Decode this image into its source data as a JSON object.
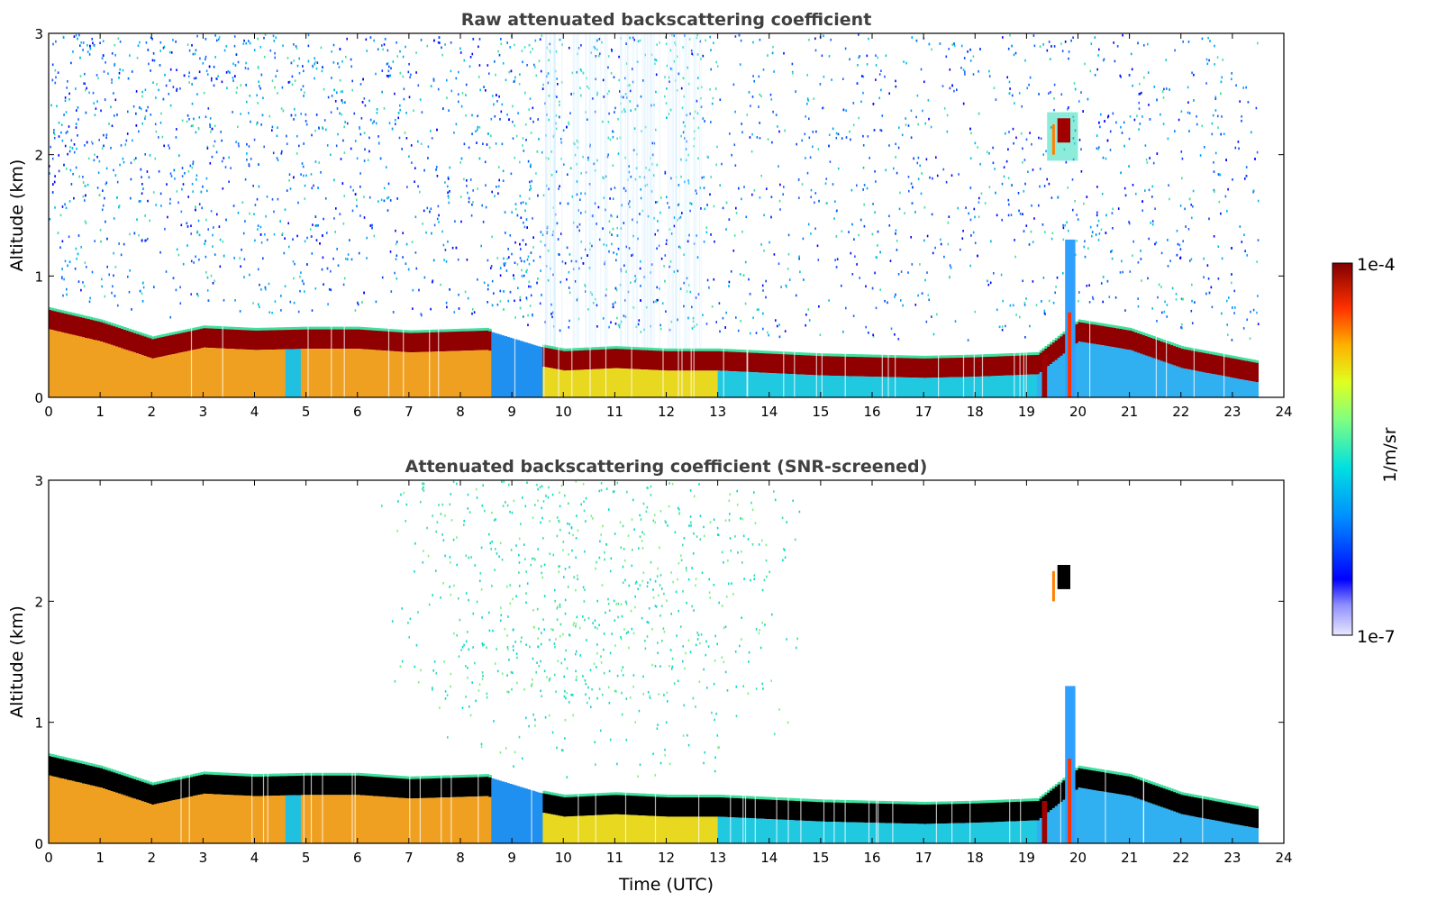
{
  "chart_data": [
    {
      "type": "heatmap",
      "title": "Raw attenuated backscattering coefficient",
      "ylabel": "Altitude (km)",
      "xlabel": "",
      "xlim": [
        0,
        24
      ],
      "ylim": [
        0,
        3
      ],
      "x_ticks": [
        "0",
        "1",
        "2",
        "3",
        "4",
        "5",
        "6",
        "7",
        "8",
        "9",
        "10",
        "11",
        "12",
        "13",
        "14",
        "15",
        "16",
        "17",
        "18",
        "19",
        "20",
        "21",
        "22",
        "23",
        "24"
      ],
      "y_ticks": [
        "0",
        "1",
        "2",
        "3"
      ],
      "screened": false,
      "boundary_layer_top_km": [
        [
          0,
          0.72
        ],
        [
          1,
          0.62
        ],
        [
          2,
          0.48
        ],
        [
          3,
          0.57
        ],
        [
          4,
          0.55
        ],
        [
          5,
          0.56
        ],
        [
          6,
          0.56
        ],
        [
          7,
          0.53
        ],
        [
          8.5,
          0.55
        ],
        [
          9.5,
          0.42
        ],
        [
          10,
          0.38
        ],
        [
          11,
          0.4
        ],
        [
          12,
          0.38
        ],
        [
          13,
          0.38
        ],
        [
          14,
          0.36
        ],
        [
          15,
          0.34
        ],
        [
          16,
          0.33
        ],
        [
          17,
          0.32
        ],
        [
          18,
          0.33
        ],
        [
          19.2,
          0.35
        ],
        [
          20,
          0.62
        ],
        [
          21,
          0.55
        ],
        [
          22,
          0.4
        ],
        [
          23.5,
          0.28
        ]
      ],
      "elevated_feature": {
        "time_utc": [
          19.4,
          20.0
        ],
        "altitude_km": [
          1.95,
          2.35
        ]
      }
    },
    {
      "type": "heatmap",
      "title": "Attenuated backscattering coefficient (SNR-screened)",
      "ylabel": "Altitude (km)",
      "xlabel": "Time (UTC)",
      "xlim": [
        0,
        24
      ],
      "ylim": [
        0,
        3
      ],
      "x_ticks": [
        "0",
        "1",
        "2",
        "3",
        "4",
        "5",
        "6",
        "7",
        "8",
        "9",
        "10",
        "11",
        "12",
        "13",
        "14",
        "15",
        "16",
        "17",
        "18",
        "19",
        "20",
        "21",
        "22",
        "23",
        "24"
      ],
      "y_ticks": [
        "0",
        "1",
        "2",
        "3"
      ],
      "screened": true
    }
  ],
  "colorbar": {
    "label": "1/m/sr",
    "max_label": "1e-4",
    "min_label": "1e-7",
    "scale": "log",
    "colormap": "jet"
  }
}
